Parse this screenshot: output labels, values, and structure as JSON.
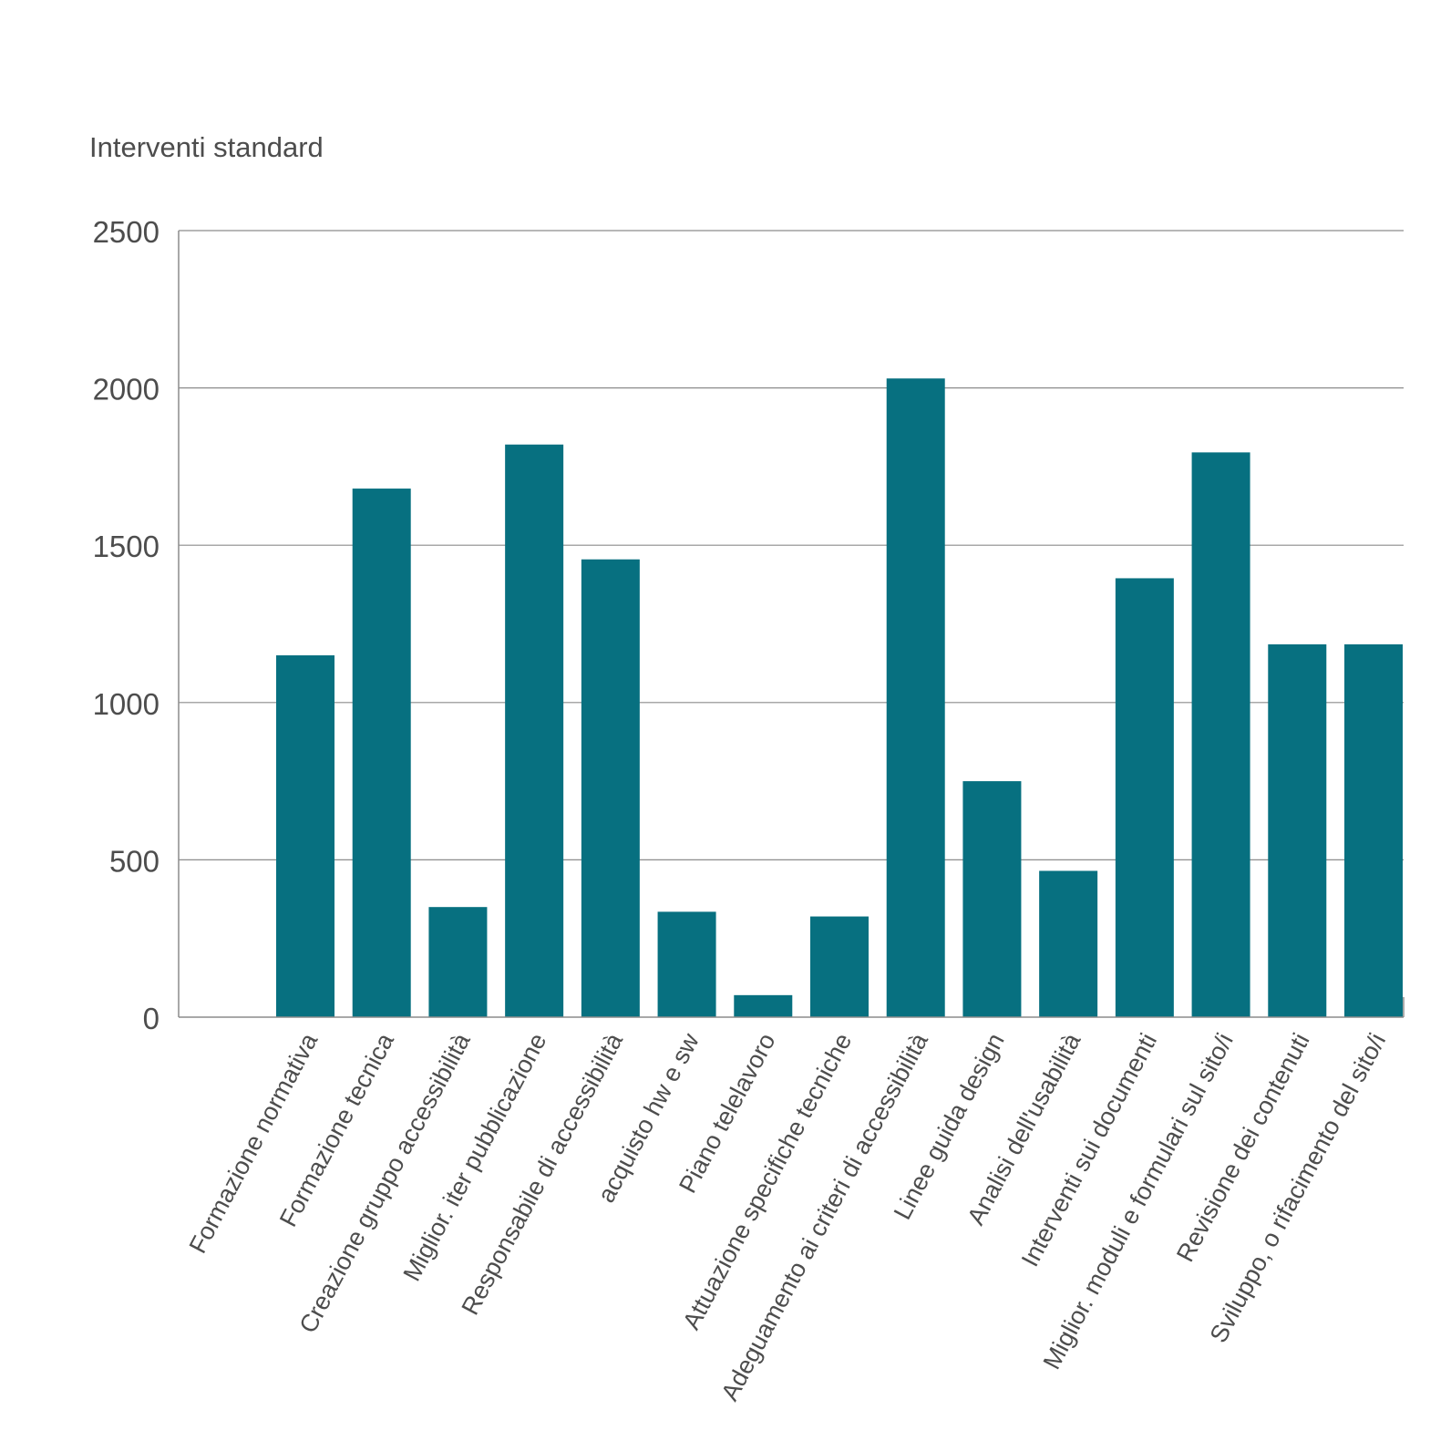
{
  "chart_data": {
    "type": "bar",
    "title": "Interventi standard",
    "xlabel": "",
    "ylabel": "",
    "ylim": [
      0,
      2500
    ],
    "yticks": [
      0,
      500,
      1000,
      1500,
      2000,
      2500
    ],
    "grid": true,
    "bar_color": "#077080",
    "categories": [
      "Formazione normativa",
      "Formazione tecnica",
      "Creazione gruppo accessibilità",
      "Miglior. iter pubblicazione",
      "Responsabile di accessibilità",
      "acquisto hw e sw",
      "Piano telelavoro",
      "Attuazione specifiche tecniche",
      "Adeguamento ai criteri di accessibilità",
      "Linee guida design",
      "Analisi dell'usabilità",
      "Interventi sui documenti",
      "Miglior. moduli e formulari sul sito/i",
      "Revisione dei contenuti",
      "Sviluppo, o rifacimento del sito/i"
    ],
    "values": [
      1150,
      1680,
      350,
      1820,
      1455,
      335,
      70,
      320,
      2030,
      750,
      465,
      1395,
      1795,
      1185,
      1185
    ]
  }
}
